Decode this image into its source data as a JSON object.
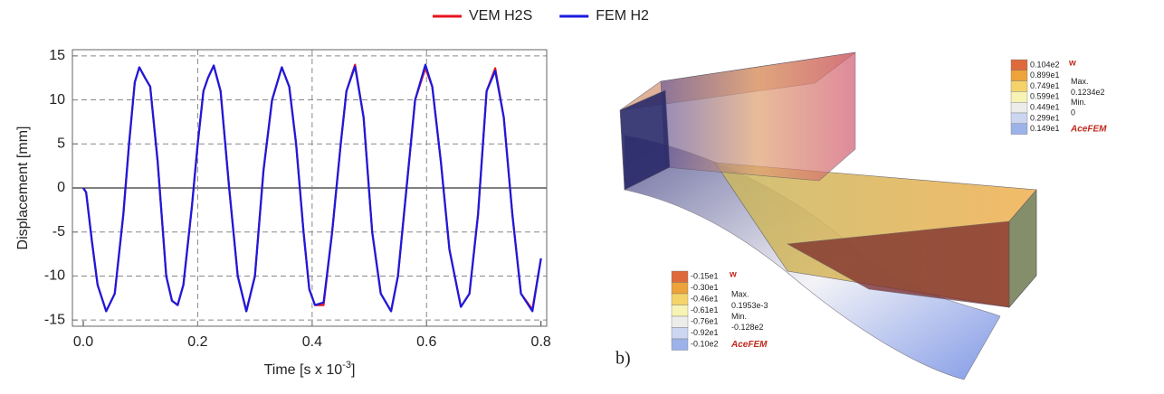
{
  "chart_data": {
    "type": "line",
    "xlabel": "Time [s x 10",
    "xlabel_exponent": "-3",
    "xlabel_suffix": "]",
    "ylabel": "Displacement [mm]",
    "x": [
      0,
      0.005,
      0.015,
      0.025,
      0.04,
      0.055,
      0.07,
      0.08,
      0.09,
      0.098,
      0.108,
      0.117,
      0.13,
      0.145,
      0.155,
      0.165,
      0.175,
      0.19,
      0.2,
      0.21,
      0.218,
      0.228,
      0.24,
      0.255,
      0.27,
      0.285,
      0.3,
      0.315,
      0.33,
      0.347,
      0.36,
      0.372,
      0.385,
      0.395,
      0.405,
      0.42,
      0.435,
      0.45,
      0.46,
      0.475,
      0.49,
      0.505,
      0.52,
      0.538,
      0.55,
      0.565,
      0.58,
      0.598,
      0.61,
      0.625,
      0.64,
      0.66,
      0.675,
      0.69,
      0.705,
      0.72,
      0.735,
      0.75,
      0.765,
      0.785,
      0.8
    ],
    "series": [
      {
        "name": "VEM H2S",
        "color": "#e8141c",
        "values": [
          0,
          -0.5,
          -6,
          -11,
          -14,
          -12,
          -3,
          5,
          12,
          13.7,
          12.5,
          11.5,
          3,
          -10,
          -12.8,
          -13.3,
          -11,
          -2,
          5,
          11,
          12.5,
          13.9,
          11,
          0,
          -10,
          -14,
          -10,
          2,
          10,
          13.7,
          11.5,
          5,
          -5,
          -11.5,
          -13.3,
          -13.3,
          -5,
          5,
          11,
          14,
          8,
          -5,
          -12,
          -14,
          -10,
          0,
          10,
          13.6,
          11.5,
          3,
          -7,
          -13.5,
          -12,
          -3,
          11,
          13.6,
          8,
          -3,
          -12,
          -13.8,
          -8
        ]
      },
      {
        "name": "FEM H2",
        "color": "#1a1ae0",
        "values": [
          0,
          -0.5,
          -6,
          -11,
          -14,
          -12,
          -3,
          5,
          12,
          13.7,
          12.5,
          11.5,
          3,
          -10,
          -12.8,
          -13.3,
          -11,
          -2,
          5,
          11,
          12.5,
          13.9,
          11,
          0,
          -10,
          -14,
          -10,
          2,
          10,
          13.7,
          11.5,
          5,
          -5,
          -11.5,
          -13.3,
          -13,
          -5,
          5,
          11,
          13.8,
          8,
          -5,
          -12,
          -14,
          -10,
          0,
          10,
          14,
          11.5,
          3,
          -7,
          -13.5,
          -12,
          -3,
          11,
          13.3,
          8,
          -3,
          -12,
          -14,
          -8
        ]
      }
    ],
    "xlim": [
      -0.019,
      0.81
    ],
    "xticks": [
      {
        "value": 0,
        "label": "0.0"
      },
      0.2,
      0.4,
      0.6,
      0.8
    ],
    "ylim": [
      -15.7,
      15.7
    ],
    "yticks": [
      -15,
      -10,
      -5,
      0,
      5,
      10,
      15
    ],
    "grid": true
  },
  "figure_b": {
    "label": "b)",
    "legends": [
      {
        "title": "w",
        "values": [
          "0.104e2",
          "0.899e1",
          "0.749e1",
          "0.599e1",
          "0.449e1",
          "0.299e1",
          "0.149e1"
        ],
        "max_label": "Max.",
        "max": "0.1234e2",
        "min_label": "Min.",
        "min": "0",
        "brand": "AceFEM",
        "colors": [
          "#de6a3c",
          "#eda23a",
          "#f4d46a",
          "#f7f3b4",
          "#ecedea",
          "#ccd6f0",
          "#9db2ea",
          "#5a7ee0"
        ]
      },
      {
        "title": "w",
        "values": [
          "-0.15e1",
          "-0.30e1",
          "-0.46e1",
          "-0.61e1",
          "-0.76e1",
          "-0.92e1",
          "-0.10e2"
        ],
        "max_label": "Max.",
        "max": "0.1953e-3",
        "min_label": "Min.",
        "min": "-0.128e2",
        "brand": "AceFEM",
        "colors": [
          "#de6a3c",
          "#eda23a",
          "#f4d46a",
          "#f7f3b4",
          "#ecedea",
          "#ccd6f0",
          "#9db2ea",
          "#5a7ee0"
        ]
      }
    ]
  }
}
